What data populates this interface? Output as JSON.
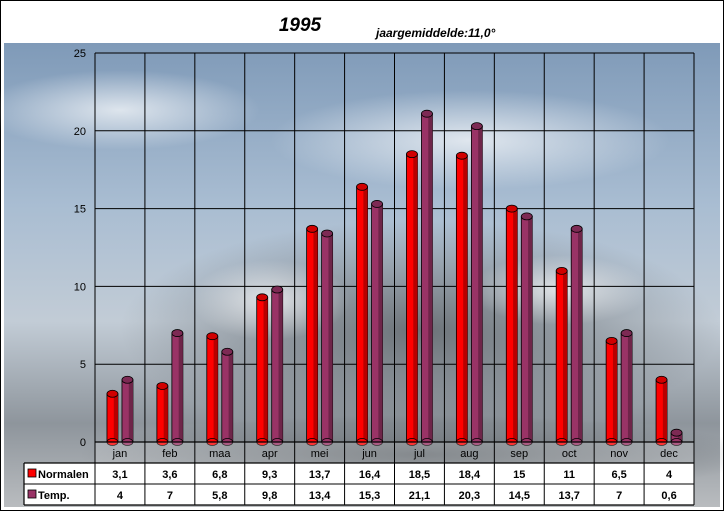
{
  "chart_data": {
    "type": "bar",
    "title": "1995",
    "subtitle": "jaargemiddelde:11,0°",
    "categories": [
      "jan",
      "feb",
      "maa",
      "apr",
      "mei",
      "jun",
      "jul",
      "aug",
      "sep",
      "oct",
      "nov",
      "dec"
    ],
    "ylim": [
      0,
      25
    ],
    "yticks": [
      0,
      5,
      10,
      15,
      20,
      25
    ],
    "grid": true,
    "legend_placement": "data-table",
    "series": [
      {
        "name": "Normalen",
        "color": "#ff0000",
        "values": [
          3.1,
          3.6,
          6.8,
          9.3,
          13.7,
          16.4,
          18.5,
          18.4,
          15,
          11,
          6.5,
          4
        ],
        "labels": [
          "3,1",
          "3,6",
          "6,8",
          "9,3",
          "13,7",
          "16,4",
          "18,5",
          "18,4",
          "15",
          "11",
          "6,5",
          "4"
        ]
      },
      {
        "name": "Temp.",
        "color": "#993366",
        "values": [
          4,
          7,
          5.8,
          9.8,
          13.4,
          15.3,
          21.1,
          20.3,
          14.5,
          13.7,
          7,
          0.6
        ],
        "labels": [
          "4",
          "7",
          "5,8",
          "9,8",
          "13,4",
          "15,3",
          "21,1",
          "20,3",
          "14,5",
          "13,7",
          "7",
          "0,6"
        ]
      }
    ]
  }
}
